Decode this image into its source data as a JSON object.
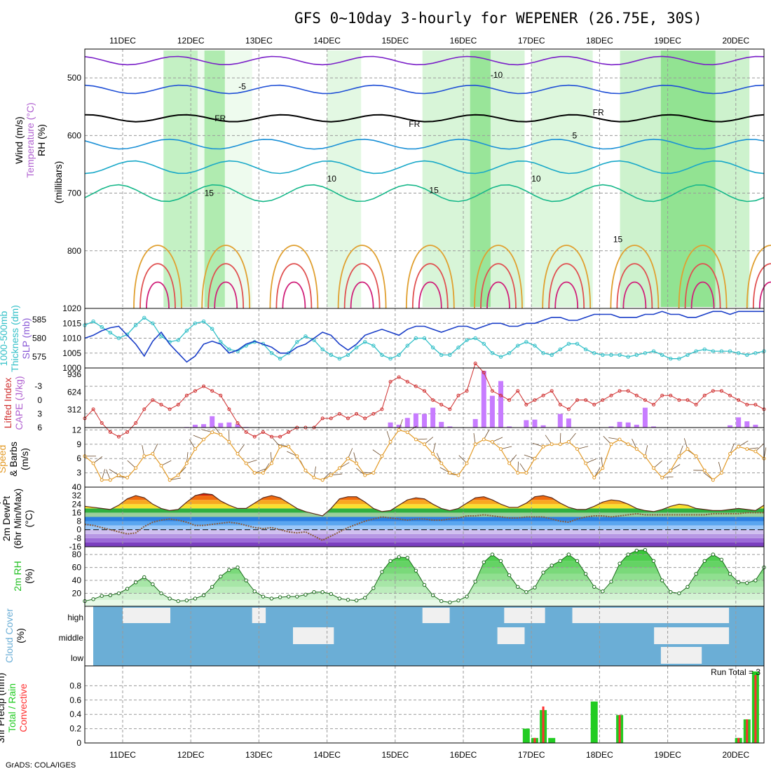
{
  "title": "GFS 0~10day 3-hourly for WEPENER (26.75E, 30S)",
  "footer": "GrADS: COLA/IGES",
  "run_total_label": "Run Total = 3",
  "colors": {
    "rh_green": "#33cc33",
    "temp_line": "#1a7fd6",
    "freezing": "#000000",
    "thickness": "#33c0c8",
    "slp": "#1a3ec8",
    "cape_bar": "#c77cff",
    "lifted_index": "#d03030",
    "wind_speed": "#e39a26",
    "barb": "#6b4a2a",
    "temp_max": "#ff3300",
    "dewpoint": "#8a5a3a",
    "rh2m": "#22c022",
    "cloud_clear": "#6baed6",
    "cloud": "#f0f0f0",
    "precip_total": "#22cc22",
    "precip_conv": "#ff3030"
  },
  "chart_data": [
    {
      "type": "contour",
      "panel": "upper-air",
      "ylabels": [
        "Wind (m/s)",
        "Temperature (°C)",
        "RH (%)",
        "(millibars)"
      ],
      "x": [
        "11DEC",
        "12DEC",
        "13DEC",
        "14DEC",
        "15DEC",
        "16DEC",
        "17DEC",
        "18DEC",
        "19DEC",
        "20DEC"
      ],
      "yticks": [
        500,
        600,
        700,
        800
      ],
      "ylim": [
        450,
        900
      ],
      "contour_labels": [
        {
          "text": "-5",
          "day": 1.7,
          "p": 520
        },
        {
          "text": "-10",
          "day": 5.4,
          "p": 500
        },
        {
          "text": "FR",
          "day": 1.35,
          "p": 575
        },
        {
          "text": "FR",
          "day": 4.2,
          "p": 585
        },
        {
          "text": "FR",
          "day": 6.9,
          "p": 565
        },
        {
          "text": "5",
          "day": 6.6,
          "p": 605
        },
        {
          "text": "10",
          "day": 3.0,
          "p": 680
        },
        {
          "text": "10",
          "day": 6.0,
          "p": 680
        },
        {
          "text": "15",
          "day": 1.2,
          "p": 705
        },
        {
          "text": "15",
          "day": 4.5,
          "p": 700
        },
        {
          "text": "15",
          "day": 7.2,
          "p": 785
        }
      ]
    },
    {
      "type": "line",
      "panel": "slp-thickness",
      "ylabels": [
        "1000-500mb",
        "Thickness (dm)",
        "SLP (mb)"
      ],
      "ylim_slp": [
        1000,
        1020
      ],
      "yticks_slp": [
        1000,
        1005,
        1010,
        1015,
        1020
      ],
      "yticks_thick": [
        575,
        580,
        585
      ],
      "series": [
        {
          "name": "SLP (mb)",
          "values": [
            1010,
            1011,
            1012.5,
            1013.5,
            1014,
            1011,
            1008,
            1004,
            1009,
            1012,
            1008,
            1005,
            1002,
            1004,
            1008,
            1009,
            1008,
            1005,
            1006,
            1008,
            1009,
            1008,
            1007,
            1005,
            1005,
            1007,
            1008,
            1010,
            1012,
            1011,
            1008,
            1006,
            1008,
            1011,
            1012,
            1013,
            1012,
            1011,
            1013,
            1014,
            1014,
            1013,
            1012,
            1013,
            1014,
            1014,
            1013,
            1014,
            1015,
            1015,
            1014,
            1014,
            1015,
            1015,
            1016,
            1017,
            1017,
            1016,
            1016,
            1017,
            1018,
            1018,
            1018,
            1017,
            1017,
            1017,
            1018,
            1018,
            1019,
            1018,
            1018,
            1017,
            1017,
            1018,
            1019,
            1019,
            1018,
            1019,
            1019,
            1019,
            1019
          ]
        },
        {
          "name": "Thickness (dm)",
          "values": [
            583.5,
            584.5,
            583,
            581.5,
            580,
            581,
            583.5,
            585.5,
            584,
            580.5,
            579,
            579.5,
            582,
            584,
            584.5,
            582.5,
            579,
            577,
            576.5,
            578,
            579,
            578.5,
            576,
            574.5,
            576,
            579,
            580.5,
            579.5,
            577,
            575.5,
            574.5,
            575.5,
            577.5,
            579,
            578,
            575.5,
            574.5,
            575.5,
            578,
            580,
            580,
            577.5,
            575.5,
            575.5,
            577.5,
            579.5,
            580,
            578.5,
            576,
            575,
            576,
            578,
            579,
            578,
            576,
            575.5,
            577,
            578.5,
            578.5,
            577,
            576,
            575.5,
            575.5,
            575.5,
            575,
            575.5,
            576,
            576.5,
            575.5,
            574.5,
            574.5,
            575.5,
            576.5,
            577,
            576.5,
            576.5,
            576.5,
            576,
            575.5,
            576,
            576.5
          ]
        }
      ]
    },
    {
      "type": "bar+line",
      "panel": "cape-li",
      "ylabels": [
        "Lifted Index",
        "CAPE (J/kg)"
      ],
      "yticks_li": [
        -3,
        0,
        3,
        6
      ],
      "yticks_cape": [
        312,
        624,
        936
      ],
      "series": [
        {
          "name": "Lifted Index",
          "values": [
            4,
            2,
            5,
            7,
            8,
            7,
            5,
            2,
            0,
            1,
            2,
            1,
            -1,
            -2,
            -3,
            -2,
            -1,
            2,
            5,
            7,
            8,
            7,
            8,
            8,
            7,
            6,
            6,
            6,
            4,
            4,
            3,
            4,
            3,
            4,
            3,
            2,
            -4,
            -5,
            -4,
            -3,
            -2,
            0,
            1,
            2,
            -1,
            -2,
            -8,
            -6,
            -2,
            -1,
            0,
            -2,
            1,
            0,
            -1,
            -2,
            1,
            2,
            0,
            0,
            1,
            0,
            -1,
            -2,
            -2,
            -1,
            0,
            1,
            -1,
            -1,
            0,
            0,
            1,
            -1,
            -2,
            -2,
            -1,
            0,
            1,
            1,
            2
          ]
        },
        {
          "name": "CAPE (J/kg)",
          "values": [
            0,
            0,
            0,
            0,
            0,
            0,
            0,
            0,
            0,
            0,
            0,
            0,
            10,
            50,
            60,
            200,
            80,
            90,
            60,
            10,
            0,
            0,
            0,
            0,
            0,
            0,
            0,
            0,
            0,
            0,
            0,
            0,
            0,
            0,
            0,
            0,
            90,
            50,
            170,
            250,
            240,
            350,
            100,
            20,
            0,
            0,
            150,
            1000,
            560,
            820,
            20,
            0,
            130,
            140,
            40,
            0,
            240,
            160,
            0,
            0,
            0,
            0,
            20,
            100,
            90,
            50,
            350,
            20,
            0,
            0,
            0,
            0,
            0,
            0,
            0,
            0,
            40,
            180,
            110,
            50,
            0
          ]
        }
      ]
    },
    {
      "type": "line",
      "panel": "wind-10m",
      "ylabels": [
        "10m Wind",
        "Speed",
        "& Barbs",
        "(m/s)"
      ],
      "ylim": [
        0,
        12
      ],
      "yticks": [
        3,
        6,
        9,
        12
      ],
      "series": [
        {
          "name": "10m Wind Speed (m/s)",
          "values": [
            6.5,
            5,
            1.5,
            1.5,
            2.5,
            2,
            4,
            6.5,
            7,
            4.5,
            1.5,
            2.5,
            5,
            8,
            10,
            11.5,
            11,
            9.5,
            7,
            5,
            3,
            3,
            5,
            8.5,
            8.5,
            6.5,
            3.5,
            2,
            1.5,
            2.5,
            4,
            6,
            5,
            2.5,
            3,
            6.5,
            9.5,
            12,
            11.5,
            10,
            9,
            7,
            5,
            3,
            2.5,
            5,
            9,
            10,
            9.5,
            8,
            5,
            3,
            3,
            6,
            8.5,
            9,
            9,
            9.5,
            8,
            5,
            2,
            4,
            9,
            10,
            9,
            8,
            6.5,
            4,
            2,
            3.5,
            6.5,
            8,
            6.5,
            3.5,
            1.5,
            3,
            7,
            8.5,
            8,
            7.5,
            6
          ]
        }
      ]
    },
    {
      "type": "area+line",
      "panel": "temp-2m",
      "ylabels": [
        "2m Temp",
        "2m DewPt",
        "(6hr Min/Max)",
        "(°C)"
      ],
      "ylim": [
        -16,
        40
      ],
      "yticks": [
        -16,
        -8,
        0,
        8,
        16,
        24,
        32,
        40
      ],
      "series": [
        {
          "name": "2m Temp (°C)",
          "values": [
            22,
            21,
            20,
            19,
            23,
            29,
            32,
            30,
            24,
            20,
            18,
            19,
            26,
            32,
            34,
            33,
            27,
            23,
            20,
            20,
            25,
            30,
            32,
            30,
            25,
            20,
            17,
            15,
            13,
            20,
            29,
            31,
            31,
            26,
            20,
            17,
            18,
            23,
            28,
            30,
            29,
            24,
            20,
            18,
            20,
            25,
            30,
            31,
            28,
            24,
            21,
            21,
            25,
            31,
            32,
            30,
            25,
            21,
            19,
            19,
            22,
            26,
            28,
            27,
            24,
            20,
            18,
            17,
            19,
            22,
            24,
            23,
            20,
            19,
            18,
            18,
            19,
            20,
            19,
            18,
            23
          ]
        },
        {
          "name": "2m DewPt (°C)",
          "values": [
            5,
            4,
            2,
            0,
            -2,
            -4,
            -3,
            3,
            7,
            9,
            10,
            9,
            7,
            4,
            4,
            5,
            6,
            7,
            6,
            4,
            2,
            1,
            2,
            0,
            -2,
            -3,
            -2,
            -6,
            -10,
            -6,
            -2,
            2,
            5,
            8,
            10,
            12,
            11,
            10,
            9,
            10,
            10,
            9,
            9,
            10,
            11,
            13,
            13,
            14,
            13,
            12,
            11,
            11,
            12,
            12,
            12,
            10,
            8,
            7,
            10,
            12,
            13,
            13,
            12,
            13,
            14,
            15,
            14,
            14,
            14,
            14,
            14,
            14,
            14,
            14,
            15,
            15,
            15,
            15,
            16,
            16,
            16
          ]
        }
      ]
    },
    {
      "type": "area",
      "panel": "rh-2m",
      "ylabels": [
        "2m RH",
        "(%)"
      ],
      "ylim": [
        0,
        90
      ],
      "yticks": [
        20,
        40,
        60,
        80
      ],
      "series": [
        {
          "name": "2m RH (%)",
          "values": [
            8,
            11,
            16,
            17,
            20,
            27,
            37,
            45,
            34,
            20,
            12,
            8,
            9,
            12,
            17,
            30,
            46,
            56,
            60,
            40,
            23,
            15,
            12,
            14,
            15,
            15,
            18,
            22,
            22,
            19,
            12,
            10,
            9,
            13,
            28,
            53,
            70,
            76,
            75,
            55,
            33,
            17,
            8,
            6,
            9,
            15,
            38,
            68,
            80,
            70,
            48,
            30,
            22,
            29,
            52,
            63,
            70,
            80,
            70,
            50,
            30,
            23,
            38,
            66,
            80,
            86,
            87,
            70,
            40,
            22,
            20,
            30,
            50,
            70,
            80,
            72,
            50,
            37,
            36,
            40,
            60
          ]
        }
      ]
    },
    {
      "type": "heatmap",
      "panel": "cloud-cover",
      "ylabels": [
        "Cloud Cover",
        "(%)"
      ],
      "levels": [
        "high",
        "middle",
        "low"
      ],
      "blocks": [
        {
          "level": "high",
          "from": 0.0,
          "to": 0.7
        },
        {
          "level": "high",
          "from": 1.9,
          "to": 2.1
        },
        {
          "level": "middle",
          "from": 2.5,
          "to": 3.1
        },
        {
          "level": "high",
          "from": 4.4,
          "to": 4.8
        },
        {
          "level": "high",
          "from": 5.6,
          "to": 6.2
        },
        {
          "level": "middle",
          "from": 5.5,
          "to": 5.9
        },
        {
          "level": "high",
          "from": 6.6,
          "to": 8.9
        },
        {
          "level": "middle",
          "from": 7.8,
          "to": 8.9
        },
        {
          "level": "low",
          "from": 7.9,
          "to": 8.5
        }
      ]
    },
    {
      "type": "bar",
      "panel": "precip-3hr",
      "ylabels": [
        "3hr Precip (mm)",
        "Total / Rain",
        "Convective"
      ],
      "ylim": [
        0,
        1.0
      ],
      "yticks": [
        0,
        0.2,
        0.4,
        0.6,
        0.8
      ],
      "series": [
        {
          "name": "Total",
          "values": [
            0,
            0,
            0,
            0,
            0,
            0,
            0,
            0,
            0,
            0,
            0,
            0,
            0,
            0,
            0,
            0,
            0,
            0,
            0,
            0,
            0,
            0,
            0,
            0,
            0,
            0,
            0,
            0,
            0,
            0,
            0,
            0,
            0,
            0,
            0,
            0,
            0,
            0,
            0,
            0,
            0,
            0,
            0,
            0,
            0,
            0,
            0,
            0,
            0,
            0,
            0,
            0,
            0.2,
            0.07,
            0.46,
            0.07,
            0,
            0,
            0,
            0,
            0.58,
            0,
            0,
            0.39,
            0,
            0,
            0,
            0,
            0,
            0,
            0,
            0,
            0,
            0,
            0,
            0,
            0,
            0.07,
            0.33,
            1.0,
            0
          ]
        },
        {
          "name": "Convective",
          "values": [
            0,
            0,
            0,
            0,
            0,
            0,
            0,
            0,
            0,
            0,
            0,
            0,
            0,
            0,
            0,
            0,
            0,
            0,
            0,
            0,
            0,
            0,
            0,
            0,
            0,
            0,
            0,
            0,
            0,
            0,
            0,
            0,
            0,
            0,
            0,
            0,
            0,
            0,
            0,
            0,
            0,
            0,
            0,
            0,
            0,
            0,
            0,
            0,
            0,
            0,
            0,
            0,
            0,
            0.07,
            0.51,
            0,
            0,
            0,
            0,
            0,
            0,
            0,
            0,
            0.39,
            0,
            0,
            0,
            0,
            0,
            0,
            0,
            0,
            0,
            0,
            0,
            0,
            0,
            0.07,
            0.33,
            0.95,
            0
          ]
        }
      ]
    }
  ]
}
